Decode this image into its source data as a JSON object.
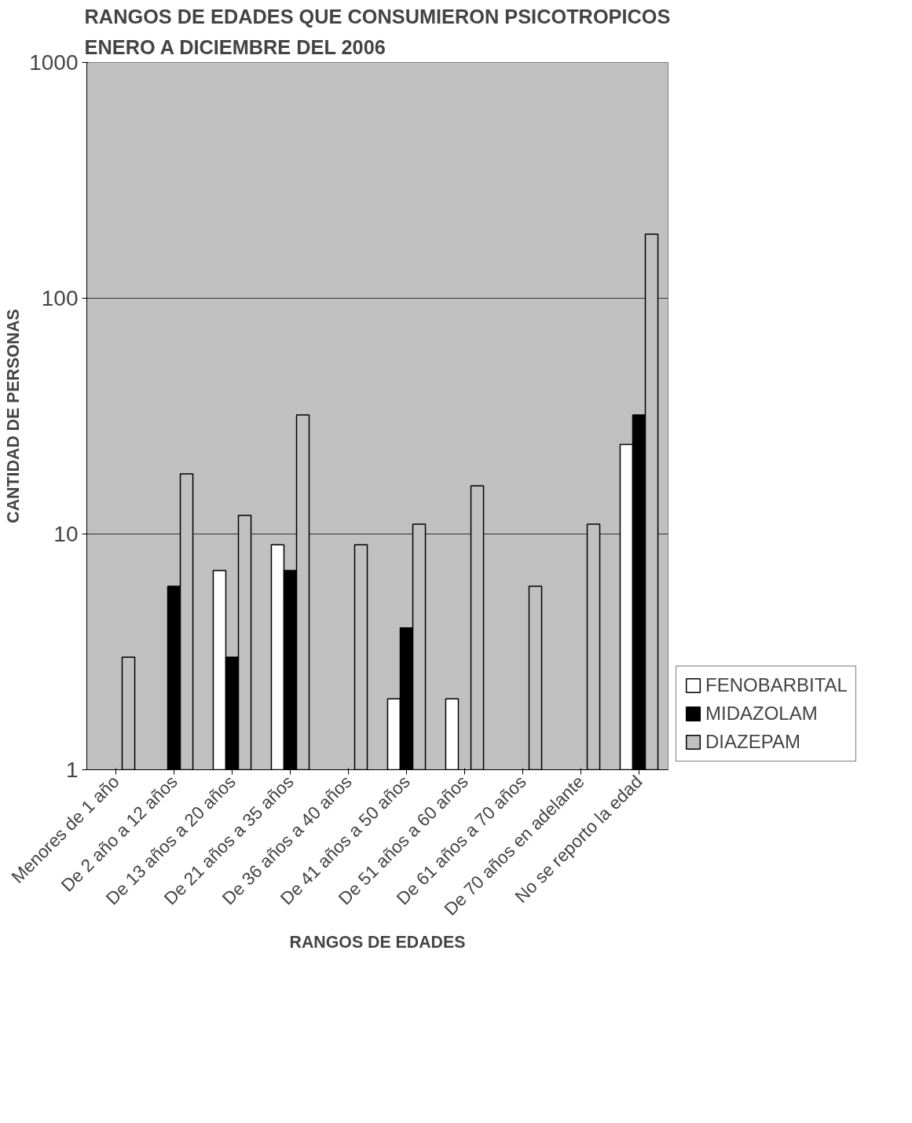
{
  "chart_data": {
    "type": "bar",
    "title": "RANGOS DE EDADES QUE CONSUMIERON PSICOTROPICOS\nENERO A DICIEMBRE DEL 2006",
    "xlabel": "RANGOS DE EDADES",
    "ylabel": "CANTIDAD DE PERSONAS",
    "categories": [
      "Menores de 1 año",
      "De 2 año a 12 años",
      "De 13 años a 20 años",
      "De 21 años a 35 años",
      "De 36 años a 40 años",
      "De 41 años a 50 años",
      "De 51 años a 60 años",
      "De 61 años a 70 años",
      "De 70 años en adelante",
      "No se reporto la edad"
    ],
    "series": [
      {
        "name": "FENOBARBITAL",
        "color": "#ffffff",
        "values": [
          null,
          null,
          7,
          9,
          null,
          2,
          2,
          null,
          null,
          24
        ]
      },
      {
        "name": "MIDAZOLAM",
        "color": "#000000",
        "values": [
          null,
          6,
          3,
          7,
          null,
          4,
          null,
          null,
          null,
          32
        ]
      },
      {
        "name": "DIAZEPAM",
        "color": "#c0c0c0",
        "values": [
          3,
          18,
          12,
          32,
          9,
          11,
          16,
          6,
          11,
          187
        ]
      }
    ],
    "log": true,
    "ylim": [
      1,
      1000
    ],
    "yticks": [
      1,
      10,
      100,
      1000
    ],
    "grid": "y",
    "legend": "bottom right"
  }
}
